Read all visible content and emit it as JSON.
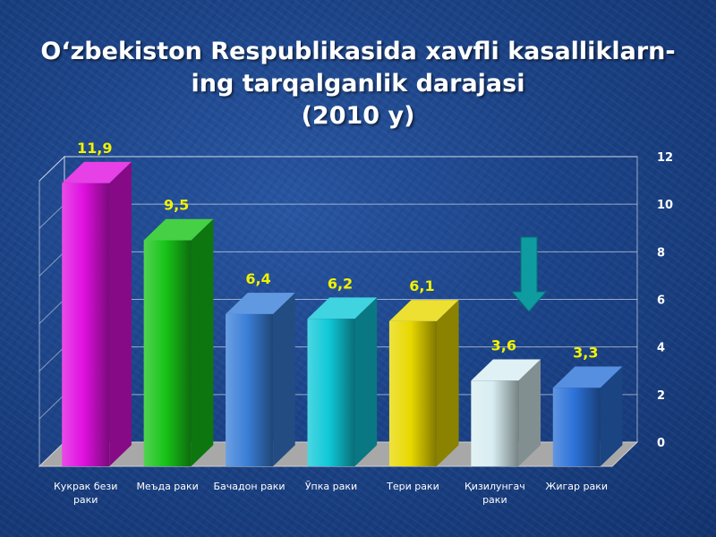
{
  "title": {
    "line1": "O‘zbekiston Respublikasida xavfli kasalliklarn-",
    "line2": "ing tarqalganlik darajasi",
    "line3": "(2010 y)"
  },
  "chart_data": {
    "type": "bar",
    "categories": [
      "Кукрак бези раки",
      "Меъда раки",
      "Бачадон раки",
      "Ўпка раки",
      "Тери раки",
      "Қизилунгач раки",
      "Жигар раки"
    ],
    "values": [
      11.9,
      9.5,
      6.4,
      6.2,
      6.1,
      3.6,
      3.3
    ],
    "value_labels": [
      "11,9",
      "9,5",
      "6,4",
      "6,2",
      "6,1",
      "3,6",
      "3,3"
    ],
    "bar_colors": [
      "#e010e0",
      "#18c418",
      "#3a7fd8",
      "#10c8d8",
      "#e8d800",
      "#d8eef2",
      "#2c72d8"
    ],
    "y_ticks": [
      "0",
      "2",
      "4",
      "6",
      "8",
      "10",
      "12"
    ],
    "ylim": [
      0,
      12
    ],
    "y_axis_side": "right",
    "grid": true,
    "style": "3d"
  },
  "annotation": {
    "arrow_color": "#0e9ca0",
    "direction": "down"
  }
}
